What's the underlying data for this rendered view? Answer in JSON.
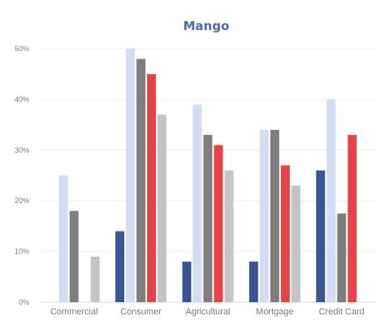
{
  "chart_data": {
    "type": "bar",
    "title": "Mango",
    "xlabel": "",
    "ylabel": "",
    "ylim": [
      0,
      50
    ],
    "yticks": [
      0,
      10,
      20,
      30,
      40,
      50
    ],
    "ytick_labels": [
      "0%",
      "10%",
      "20%",
      "30%",
      "40%",
      "50%"
    ],
    "grid": true,
    "legend": "none",
    "categories": [
      "Commercial",
      "Consumer",
      "Agricultural",
      "Mortgage",
      "Credit Card"
    ],
    "series": [
      {
        "color": "#3a5590",
        "values": [
          0,
          14,
          8,
          8,
          26
        ]
      },
      {
        "color": "#d2dcf2",
        "values": [
          25,
          50,
          39,
          34,
          40
        ]
      },
      {
        "color": "#7e7e7e",
        "values": [
          18,
          48,
          33,
          34,
          17.5
        ]
      },
      {
        "color": "#e54348",
        "values": [
          0,
          45,
          31,
          27,
          33
        ]
      },
      {
        "color": "#c4c4c4",
        "values": [
          9,
          37,
          26,
          23,
          0
        ]
      }
    ]
  }
}
